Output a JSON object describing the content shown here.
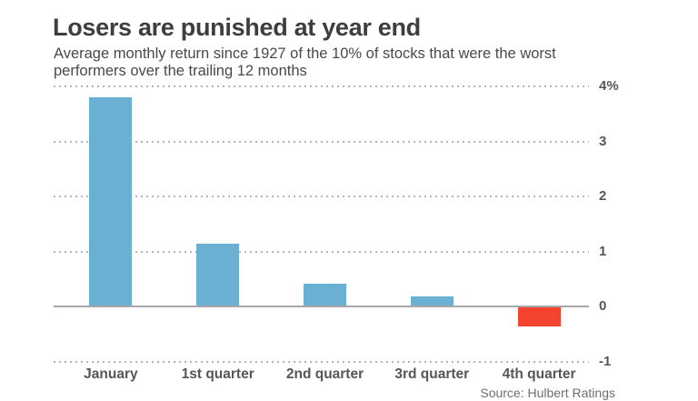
{
  "header": {
    "title": "Losers are punished at year end",
    "subtitle_lines": [
      "Average monthly return since 1927 of the 10% of stocks that were the worst",
      "performers over the trailing 12 months"
    ]
  },
  "chart_data": {
    "type": "bar",
    "title": "Losers are punished at year end",
    "subtitle": "Average monthly return since 1927 of the 10% of stocks that were the worst performers over the trailing 12 months",
    "categories": [
      "January",
      "1st quarter",
      "2nd quarter",
      "3rd quarter",
      "4th quarter"
    ],
    "values": [
      3.8,
      1.15,
      0.42,
      0.18,
      -0.35
    ],
    "unit": "percent",
    "xlabel": "",
    "ylabel": "",
    "ylim": [
      -1,
      4
    ],
    "yticks": [
      {
        "value": 4,
        "label": "4%"
      },
      {
        "value": 3,
        "label": "3"
      },
      {
        "value": 2,
        "label": "2"
      },
      {
        "value": 1,
        "label": "1"
      },
      {
        "value": 0,
        "label": "0"
      },
      {
        "value": -1,
        "label": "-1"
      }
    ],
    "grid": "horizontal-dotted",
    "legend": "none",
    "colors": {
      "positive_bar": "#69b0d2",
      "negative_bar": "#f4432e",
      "gridline": "#b3b5b7",
      "zero_axis": "#a6a8ab"
    }
  },
  "footer": {
    "source": "Source: Hulbert Ratings"
  }
}
